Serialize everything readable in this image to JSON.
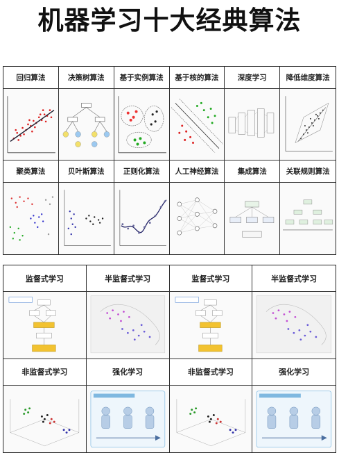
{
  "title": "机器学习十大经典算法",
  "top_grid": {
    "row1": [
      "回归算法",
      "决策树算法",
      "基于实例算法",
      "基于核的算法",
      "深度学习",
      "降低维度算法"
    ],
    "row2": [
      "聚类算法",
      "贝叶斯算法",
      "正则化算法",
      "人工神经算法",
      "集成算法",
      "关联规则算法"
    ]
  },
  "bottom_grid": {
    "row1": [
      "监督式学习",
      "半监督式学习",
      "监督式学习",
      "半监督式学习"
    ],
    "row2": [
      "非监督式学习",
      "强化学习",
      "非监督式学习",
      "强化学习"
    ]
  }
}
